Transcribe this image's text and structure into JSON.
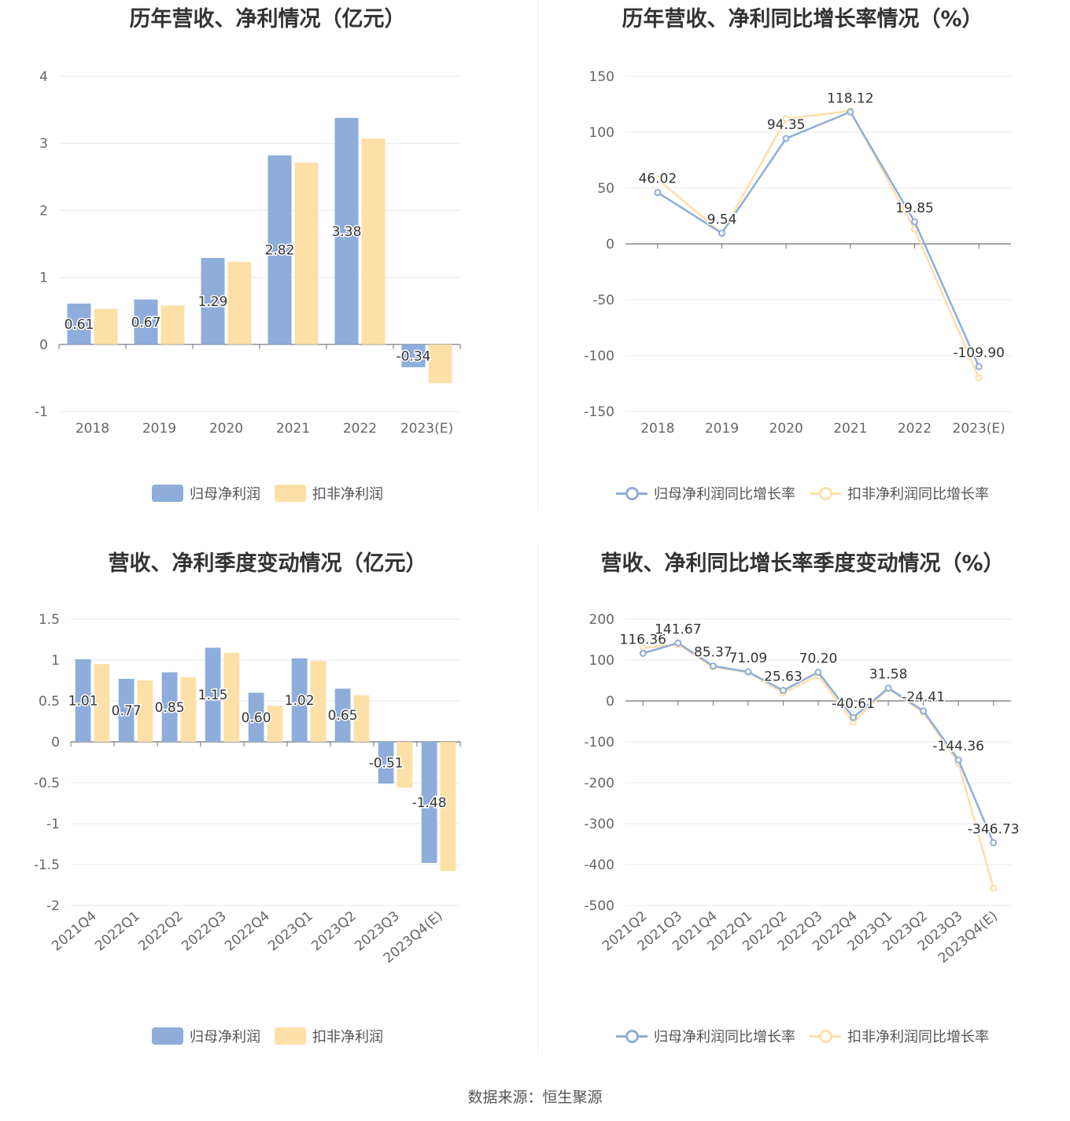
{
  "colors": {
    "series1": "#8eadda",
    "series2": "#fddfa8",
    "grid": "#e8e8ee",
    "axis": "#6e7079"
  },
  "source": "数据来源：恒生聚源",
  "chart_data": [
    {
      "id": "annual-profit",
      "type": "bar",
      "title": "历年营收、净利情况（亿元）",
      "categories": [
        "2018",
        "2019",
        "2020",
        "2021",
        "2022",
        "2023(E)"
      ],
      "series": [
        {
          "name": "归母净利润",
          "values": [
            0.61,
            0.67,
            1.29,
            2.82,
            3.38,
            -0.34
          ]
        },
        {
          "name": "扣非净利润",
          "values": [
            0.53,
            0.58,
            1.23,
            2.71,
            3.07,
            -0.58
          ]
        }
      ],
      "data_labels": [
        "0.61",
        "0.67",
        "1.29",
        "2.82",
        "3.38",
        "-0.34"
      ],
      "yticks": [
        -1,
        0,
        1,
        2,
        3,
        4
      ],
      "ylim": [
        -1,
        4
      ],
      "legend": "bottom"
    },
    {
      "id": "annual-growth",
      "type": "line",
      "title": "历年营收、净利同比增长率情况（%）",
      "categories": [
        "2018",
        "2019",
        "2020",
        "2021",
        "2022",
        "2023(E)"
      ],
      "series": [
        {
          "name": "归母净利润同比增长率",
          "values": [
            46.02,
            9.54,
            94.35,
            118.12,
            19.85,
            -109.9
          ]
        },
        {
          "name": "扣非净利润同比增长率",
          "values": [
            58,
            9.5,
            112,
            119,
            13,
            -120
          ]
        }
      ],
      "data_labels": [
        "46.02",
        "9.54",
        "94.35",
        "118.12",
        "19.85",
        "-109.90"
      ],
      "yticks": [
        -150,
        -100,
        -50,
        0,
        50,
        100,
        150
      ],
      "ylim": [
        -150,
        150
      ],
      "legend": "bottom"
    },
    {
      "id": "quarterly-profit",
      "type": "bar",
      "title": "营收、净利季度变动情况（亿元）",
      "categories": [
        "2021Q4",
        "2022Q1",
        "2022Q2",
        "2022Q3",
        "2022Q4",
        "2023Q1",
        "2023Q2",
        "2023Q3",
        "2023Q4(E)"
      ],
      "series": [
        {
          "name": "归母净利润",
          "values": [
            1.01,
            0.77,
            0.85,
            1.15,
            0.6,
            1.02,
            0.65,
            -0.51,
            -1.48
          ]
        },
        {
          "name": "扣非净利润",
          "values": [
            0.95,
            0.75,
            0.79,
            1.09,
            0.44,
            0.99,
            0.57,
            -0.56,
            -1.58
          ]
        }
      ],
      "data_labels": [
        "1.01",
        "0.77",
        "0.85",
        "1.15",
        "0.60",
        "1.02",
        "0.65",
        "-0.51",
        "-1.48"
      ],
      "yticks": [
        -2,
        -1.5,
        -1,
        -0.5,
        0,
        0.5,
        1,
        1.5
      ],
      "ylim": [
        -2,
        1.5
      ],
      "legend": "bottom"
    },
    {
      "id": "quarterly-growth",
      "type": "line",
      "title": "营收、净利同比增长率季度变动情况（%）",
      "categories": [
        "2021Q2",
        "2021Q3",
        "2021Q4",
        "2022Q1",
        "2022Q2",
        "2022Q3",
        "2022Q4",
        "2023Q1",
        "2023Q2",
        "2023Q3",
        "2023Q4(E)"
      ],
      "series": [
        {
          "name": "归母净利润同比增长率",
          "values": [
            116.36,
            141.67,
            85.37,
            71.09,
            25.63,
            70.2,
            -40.61,
            31.58,
            -24.41,
            -144.36,
            -346.73
          ]
        },
        {
          "name": "扣非净利润同比增长率",
          "values": [
            130,
            138,
            83,
            70,
            20,
            62,
            -52,
            30,
            -28,
            -152,
            -458
          ]
        }
      ],
      "data_labels": [
        "116.36",
        "141.67",
        "85.37",
        "71.09",
        "25.63",
        "70.20",
        "-40.61",
        "31.58",
        "-24.41",
        "-144.36",
        "-346.73"
      ],
      "yticks": [
        -500,
        -400,
        -300,
        -200,
        -100,
        0,
        100,
        200
      ],
      "ylim": [
        -500,
        200
      ],
      "legend": "bottom"
    }
  ]
}
